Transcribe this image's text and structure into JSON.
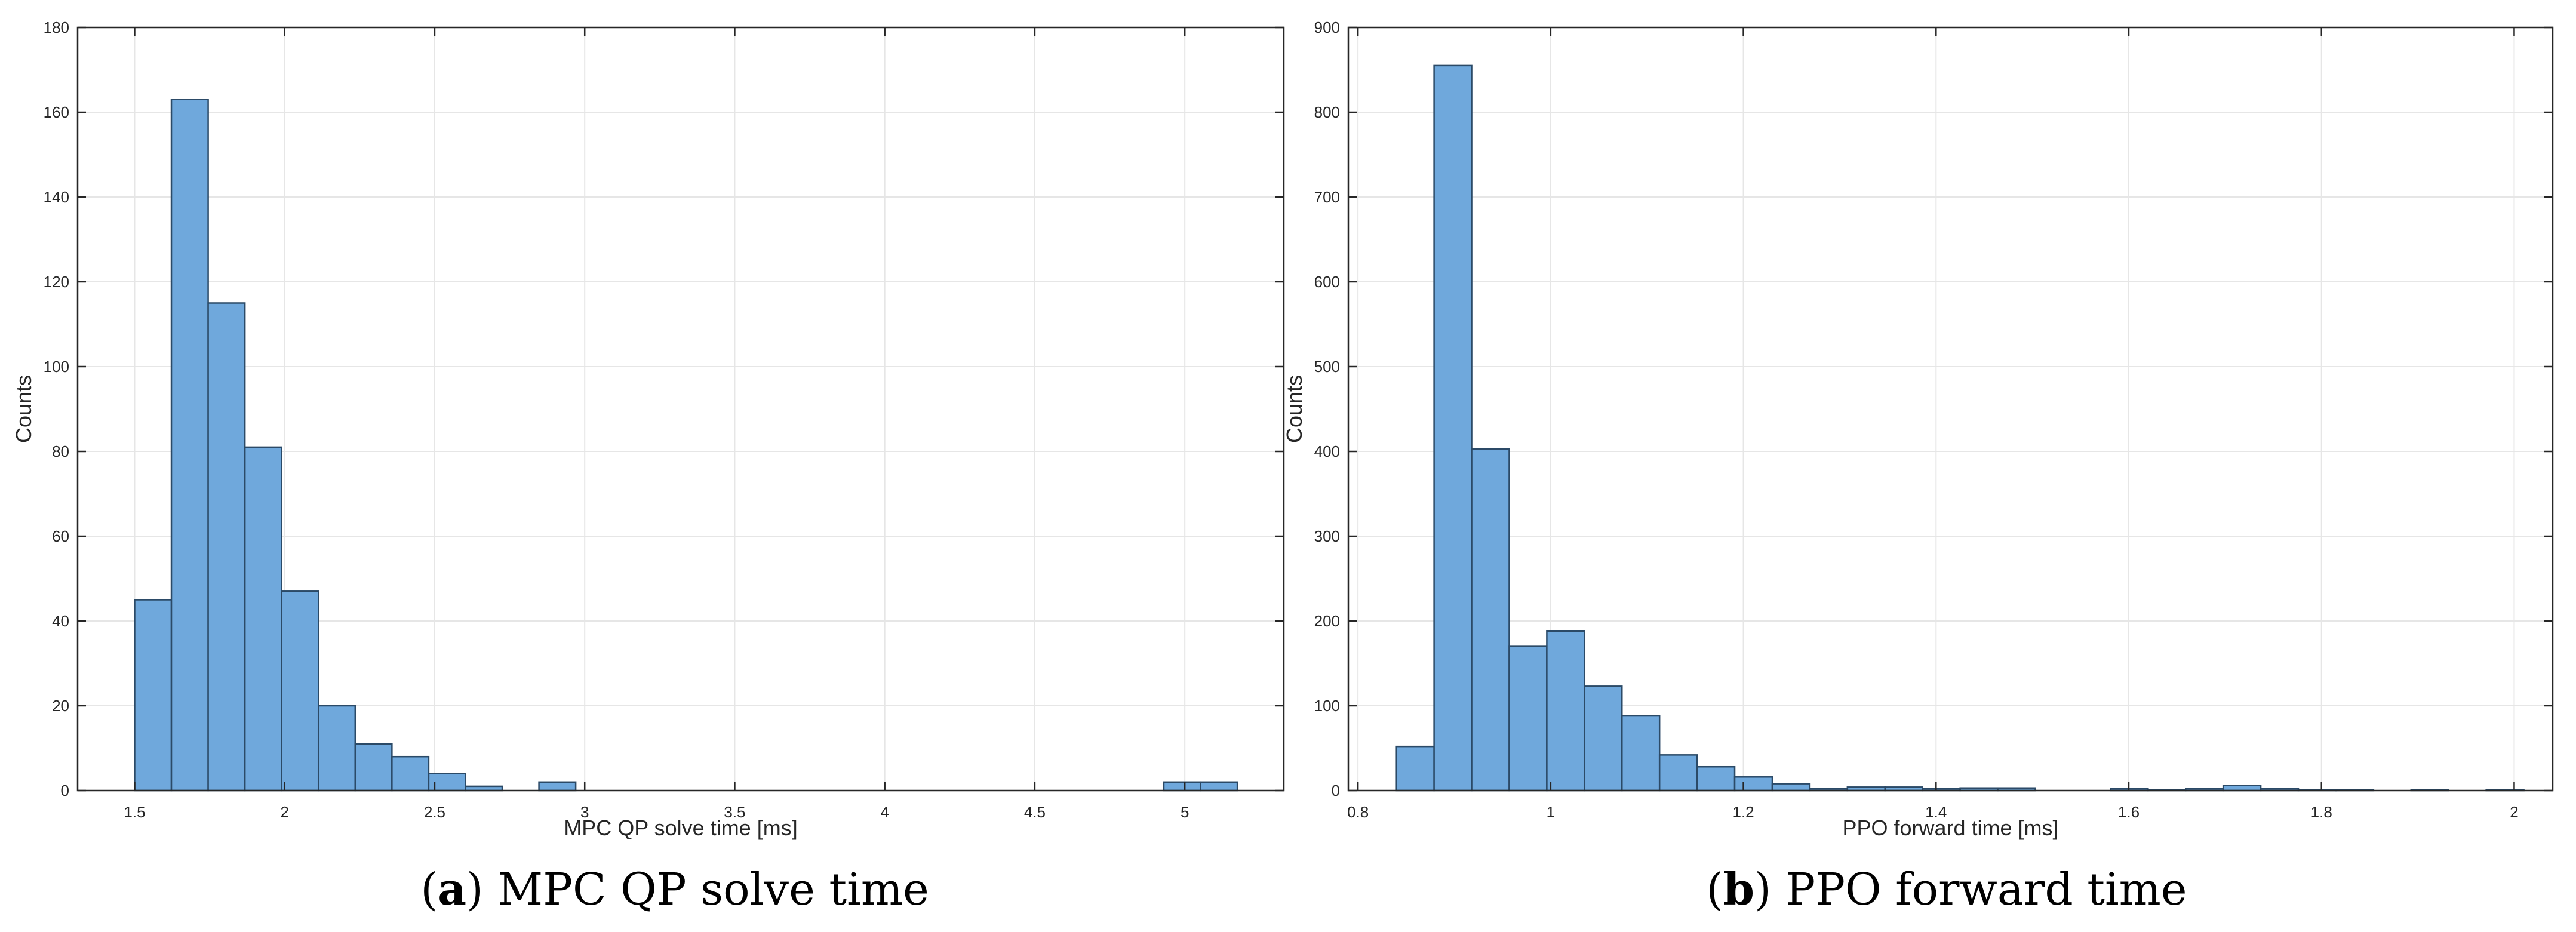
{
  "figure": {
    "captions": [
      {
        "letter": "a",
        "open": "(",
        "close": ")",
        "text": " MPC QP solve time"
      },
      {
        "letter": "b",
        "open": "(",
        "close": ")",
        "text": " PPO forward time"
      }
    ]
  },
  "chart_data": [
    {
      "type": "bar",
      "title": "",
      "xlabel": "MPC QP solve time [ms]",
      "ylabel": "Counts",
      "xlim": [
        1.31,
        5.33
      ],
      "ylim": [
        0,
        180
      ],
      "xticks": [
        1.5,
        2,
        2.5,
        3,
        3.5,
        4,
        4.5,
        5
      ],
      "xtick_labels": [
        "1.5",
        "2",
        "2.5",
        "3",
        "3.5",
        "4",
        "4.5",
        "5"
      ],
      "yticks": [
        0,
        20,
        40,
        60,
        80,
        100,
        120,
        140,
        160,
        180
      ],
      "ytick_labels": [
        "0",
        "20",
        "40",
        "60",
        "80",
        "100",
        "120",
        "140",
        "160",
        "180"
      ],
      "grid": true,
      "bin_edges": [
        1.5,
        1.6225,
        1.745,
        1.8675,
        1.99,
        2.1125,
        2.235,
        2.3575,
        2.48,
        2.6025,
        2.725,
        2.8475,
        2.97,
        3.0925,
        3.215,
        3.3375,
        3.46,
        3.5825,
        3.705,
        3.8275,
        3.95,
        4.0725,
        4.195,
        4.3175,
        4.44,
        4.5625,
        4.685,
        4.8075,
        4.93,
        5.0525,
        5.175
      ],
      "counts": [
        45,
        163,
        115,
        81,
        47,
        20,
        11,
        8,
        4,
        1,
        0,
        2,
        0,
        0,
        0,
        0,
        0,
        0,
        0,
        0,
        0,
        0,
        0,
        0,
        0,
        0,
        0,
        0,
        2,
        2
      ],
      "bar_color": "#6fa8dc",
      "edge_color": "#2b4a67"
    },
    {
      "type": "bar",
      "title": "",
      "xlabel": "PPO forward time [ms]",
      "ylabel": "Counts",
      "xlim": [
        0.79,
        2.04
      ],
      "ylim": [
        0,
        900
      ],
      "xticks": [
        0.8,
        1,
        1.2,
        1.4,
        1.6,
        1.8,
        2
      ],
      "xtick_labels": [
        "0.8",
        "1",
        "1.2",
        "1.4",
        "1.6",
        "1.8",
        "2"
      ],
      "yticks": [
        0,
        100,
        200,
        300,
        400,
        500,
        600,
        700,
        800,
        900
      ],
      "ytick_labels": [
        "0",
        "100",
        "200",
        "300",
        "400",
        "500",
        "600",
        "700",
        "800",
        "900"
      ],
      "grid": true,
      "bin_edges": [
        0.84,
        0.879,
        0.918,
        0.957,
        0.996,
        1.035,
        1.074,
        1.113,
        1.152,
        1.191,
        1.23,
        1.269,
        1.308,
        1.347,
        1.386,
        1.425,
        1.464,
        1.503,
        1.542,
        1.581,
        1.62,
        1.659,
        1.698,
        1.737,
        1.776,
        1.815,
        1.854,
        1.893,
        1.932,
        1.971,
        2.01
      ],
      "counts": [
        52,
        855,
        403,
        170,
        188,
        123,
        88,
        42,
        28,
        16,
        8,
        2,
        4,
        4,
        2,
        3,
        3,
        0,
        0,
        2,
        1,
        2,
        6,
        2,
        1,
        1,
        0,
        1,
        0,
        1
      ],
      "bar_color": "#6fa8dc",
      "edge_color": "#2b4a67"
    }
  ]
}
